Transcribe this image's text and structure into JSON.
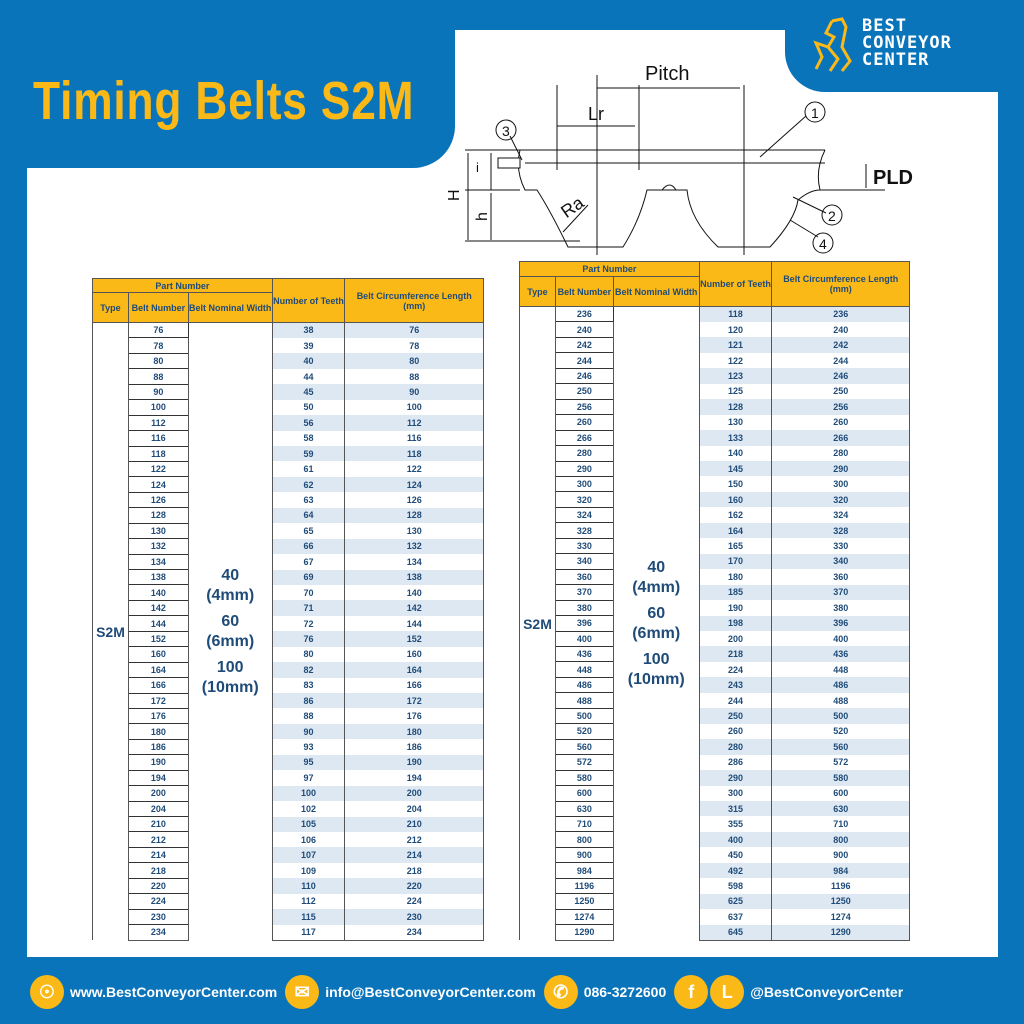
{
  "header": {
    "title": "Timing Belts S2M"
  },
  "logo": {
    "line1": "BEST",
    "line2": "CONVEYOR",
    "line3": "CENTER"
  },
  "diagram": {
    "pitch": "Pitch",
    "lr": "Lr",
    "pld": "PLD",
    "ra": "Ra",
    "H": "H",
    "h": "h",
    "i": "i",
    "callouts": [
      "1",
      "2",
      "3",
      "4"
    ]
  },
  "colors": {
    "brand_blue": "#0a74bb",
    "accent_yellow": "#fbb917",
    "text_navy": "#1f4b78",
    "stripe": "#dde8f3"
  },
  "table_headers": {
    "part_number": "Part Number",
    "type": "Type",
    "belt_number": "Belt Number",
    "belt_nominal_width": "Belt Nominal Width",
    "number_of_teeth": "Number of Teeth",
    "length": "Belt Circumference Length (mm)"
  },
  "tables": [
    {
      "type": "S2M",
      "widths": [
        "40",
        "(4mm)",
        "60",
        "(6mm)",
        "100",
        "(10mm)"
      ],
      "rows": [
        [
          "76",
          "38",
          "76"
        ],
        [
          "78",
          "39",
          "78"
        ],
        [
          "80",
          "40",
          "80"
        ],
        [
          "88",
          "44",
          "88"
        ],
        [
          "90",
          "45",
          "90"
        ],
        [
          "100",
          "50",
          "100"
        ],
        [
          "112",
          "56",
          "112"
        ],
        [
          "116",
          "58",
          "116"
        ],
        [
          "118",
          "59",
          "118"
        ],
        [
          "122",
          "61",
          "122"
        ],
        [
          "124",
          "62",
          "124"
        ],
        [
          "126",
          "63",
          "126"
        ],
        [
          "128",
          "64",
          "128"
        ],
        [
          "130",
          "65",
          "130"
        ],
        [
          "132",
          "66",
          "132"
        ],
        [
          "134",
          "67",
          "134"
        ],
        [
          "138",
          "69",
          "138"
        ],
        [
          "140",
          "70",
          "140"
        ],
        [
          "142",
          "71",
          "142"
        ],
        [
          "144",
          "72",
          "144"
        ],
        [
          "152",
          "76",
          "152"
        ],
        [
          "160",
          "80",
          "160"
        ],
        [
          "164",
          "82",
          "164"
        ],
        [
          "166",
          "83",
          "166"
        ],
        [
          "172",
          "86",
          "172"
        ],
        [
          "176",
          "88",
          "176"
        ],
        [
          "180",
          "90",
          "180"
        ],
        [
          "186",
          "93",
          "186"
        ],
        [
          "190",
          "95",
          "190"
        ],
        [
          "194",
          "97",
          "194"
        ],
        [
          "200",
          "100",
          "200"
        ],
        [
          "204",
          "102",
          "204"
        ],
        [
          "210",
          "105",
          "210"
        ],
        [
          "212",
          "106",
          "212"
        ],
        [
          "214",
          "107",
          "214"
        ],
        [
          "218",
          "109",
          "218"
        ],
        [
          "220",
          "110",
          "220"
        ],
        [
          "224",
          "112",
          "224"
        ],
        [
          "230",
          "115",
          "230"
        ],
        [
          "234",
          "117",
          "234"
        ]
      ]
    },
    {
      "type": "S2M",
      "widths": [
        "40",
        "(4mm)",
        "60",
        "(6mm)",
        "100",
        "(10mm)"
      ],
      "rows": [
        [
          "236",
          "118",
          "236"
        ],
        [
          "240",
          "120",
          "240"
        ],
        [
          "242",
          "121",
          "242"
        ],
        [
          "244",
          "122",
          "244"
        ],
        [
          "246",
          "123",
          "246"
        ],
        [
          "250",
          "125",
          "250"
        ],
        [
          "256",
          "128",
          "256"
        ],
        [
          "260",
          "130",
          "260"
        ],
        [
          "266",
          "133",
          "266"
        ],
        [
          "280",
          "140",
          "280"
        ],
        [
          "290",
          "145",
          "290"
        ],
        [
          "300",
          "150",
          "300"
        ],
        [
          "320",
          "160",
          "320"
        ],
        [
          "324",
          "162",
          "324"
        ],
        [
          "328",
          "164",
          "328"
        ],
        [
          "330",
          "165",
          "330"
        ],
        [
          "340",
          "170",
          "340"
        ],
        [
          "360",
          "180",
          "360"
        ],
        [
          "370",
          "185",
          "370"
        ],
        [
          "380",
          "190",
          "380"
        ],
        [
          "396",
          "198",
          "396"
        ],
        [
          "400",
          "200",
          "400"
        ],
        [
          "436",
          "218",
          "436"
        ],
        [
          "448",
          "224",
          "448"
        ],
        [
          "486",
          "243",
          "486"
        ],
        [
          "488",
          "244",
          "488"
        ],
        [
          "500",
          "250",
          "500"
        ],
        [
          "520",
          "260",
          "520"
        ],
        [
          "560",
          "280",
          "560"
        ],
        [
          "572",
          "286",
          "572"
        ],
        [
          "580",
          "290",
          "580"
        ],
        [
          "600",
          "300",
          "600"
        ],
        [
          "630",
          "315",
          "630"
        ],
        [
          "710",
          "355",
          "710"
        ],
        [
          "800",
          "400",
          "800"
        ],
        [
          "900",
          "450",
          "900"
        ],
        [
          "984",
          "492",
          "984"
        ],
        [
          "1196",
          "598",
          "1196"
        ],
        [
          "1250",
          "625",
          "1250"
        ],
        [
          "1274",
          "637",
          "1274"
        ],
        [
          "1290",
          "645",
          "1290"
        ]
      ]
    }
  ],
  "footer": {
    "website": {
      "icon": "globe-icon",
      "text": "www.BestConveyorCenter.com"
    },
    "email": {
      "icon": "mail-icon",
      "text": "info@BestConveyorCenter.com"
    },
    "phone": {
      "icon": "phone-icon",
      "text": "086-3272600"
    },
    "social": {
      "icons": [
        "facebook-icon",
        "line-icon"
      ],
      "text": "@BestConveyorCenter"
    }
  }
}
